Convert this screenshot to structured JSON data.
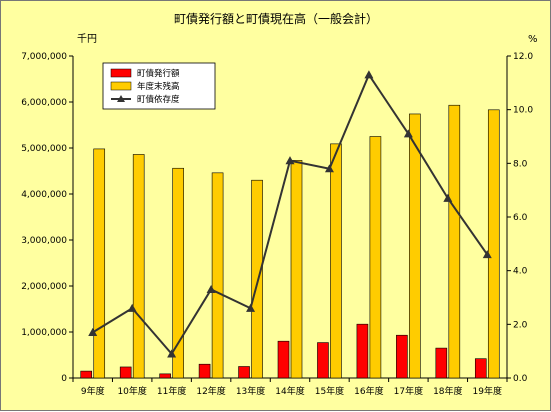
{
  "chart_data": {
    "type": "bar",
    "title": "町債発行額と町債現在高（一般会計）",
    "left_unit": "千円",
    "right_unit": "%",
    "categories": [
      "9年度",
      "10年度",
      "11年度",
      "12年度",
      "13年度",
      "14年度",
      "15年度",
      "16年度",
      "17年度",
      "18年度",
      "19年度"
    ],
    "left_axis": {
      "ylim": [
        0,
        7000000
      ],
      "ticks": [
        0,
        1000000,
        2000000,
        3000000,
        4000000,
        5000000,
        6000000,
        7000000
      ],
      "tick_labels": [
        "0",
        "1,000,000",
        "2,000,000",
        "3,000,000",
        "4,000,000",
        "5,000,000",
        "6,000,000",
        "7,000,000"
      ]
    },
    "right_axis": {
      "ylim": [
        0,
        12
      ],
      "ticks": [
        0,
        2,
        4,
        6,
        8,
        10,
        12
      ],
      "tick_labels": [
        "0.0",
        "2.0",
        "4.0",
        "6.0",
        "8.0",
        "10.0",
        "12.0"
      ]
    },
    "grid": false,
    "legend_position": "top-left",
    "series": [
      {
        "name": "町債発行額",
        "kind": "bar",
        "axis": "left",
        "color": "#ff0000",
        "values": [
          150000,
          240000,
          90000,
          300000,
          250000,
          800000,
          770000,
          1170000,
          930000,
          650000,
          420000
        ]
      },
      {
        "name": "年度末残高",
        "kind": "bar",
        "axis": "left",
        "color": "#ffcc00",
        "values": [
          4980000,
          4860000,
          4560000,
          4460000,
          4300000,
          4730000,
          5090000,
          5250000,
          5740000,
          5930000,
          5830000
        ]
      },
      {
        "name": "町債依存度",
        "kind": "line",
        "axis": "right",
        "color": "#333333",
        "marker": "triangle",
        "values": [
          1.7,
          2.6,
          0.9,
          3.3,
          2.6,
          8.1,
          7.8,
          11.3,
          9.1,
          6.7,
          4.6
        ]
      }
    ]
  }
}
